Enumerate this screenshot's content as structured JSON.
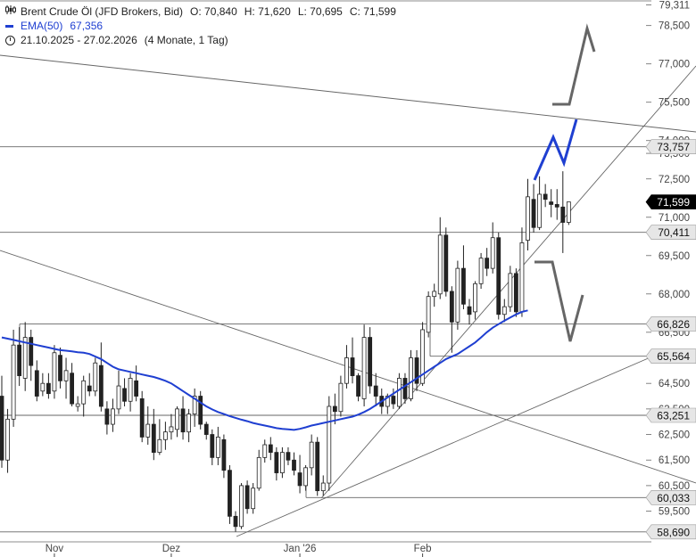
{
  "legend": {
    "title": "Brent Crude Öl (JFD Brokers, Bid)",
    "open": "O: 70,840",
    "high": "H: 71,620",
    "low": "L: 70,695",
    "close": "C: 71,599",
    "ema_label": "EMA(50)",
    "ema_value": "67,356",
    "date_range": "21.10.2025 - 27.02.2026",
    "period": "(4 Monate, 1 Tag)"
  },
  "chart_data": {
    "type": "candlestick",
    "y_axis_ticks": [
      "79,311",
      "78,500",
      "77,000",
      "75,500",
      "74,000",
      "73,500",
      "72,500",
      "71,000",
      "69,500",
      "68,000",
      "66,500",
      "64,500",
      "63,500",
      "62,500",
      "61,500",
      "60,500",
      "59,500"
    ],
    "x_axis_ticks": [
      "Nov",
      "Dez",
      "Jan '26",
      "Feb"
    ],
    "ylim": [
      58.3,
      79.5
    ],
    "price_tags": [
      {
        "value": "73,757",
        "style": "level"
      },
      {
        "value": "71,599",
        "style": "last"
      },
      {
        "value": "70,411",
        "style": "level"
      },
      {
        "value": "66,826",
        "style": "level"
      },
      {
        "value": "65,564",
        "style": "level"
      },
      {
        "value": "63,251",
        "style": "level"
      },
      {
        "value": "60,033",
        "style": "level"
      },
      {
        "value": "58,690",
        "style": "level"
      }
    ],
    "horizontal_levels": [
      73.757,
      70.411,
      66.826,
      65.564,
      63.251,
      60.033,
      58.69
    ],
    "last_price": 71.599,
    "colors": {
      "up": "#ffffff",
      "down": "#222222",
      "wick": "#222222",
      "ema": "#1f3fd1",
      "level": "#666666",
      "scenario_up": "#1f3fd1",
      "scenario_alt": "#666666",
      "tag_bg": "#e6e6e6",
      "last_tag_bg": "#000000"
    },
    "candles": [
      [
        64.0,
        64.8,
        61.2,
        61.5
      ],
      [
        61.5,
        63.5,
        61.0,
        63.1
      ],
      [
        63.1,
        66.6,
        62.8,
        66.0
      ],
      [
        66.0,
        66.7,
        64.4,
        64.8
      ],
      [
        64.7,
        66.9,
        64.2,
        66.3
      ],
      [
        66.3,
        66.6,
        64.6,
        65.2
      ],
      [
        65.0,
        65.4,
        63.8,
        64.0
      ],
      [
        64.2,
        64.9,
        64.0,
        64.5
      ],
      [
        64.5,
        64.9,
        63.9,
        64.1
      ],
      [
        64.2,
        66.0,
        63.9,
        65.7
      ],
      [
        65.6,
        65.9,
        64.3,
        64.6
      ],
      [
        64.6,
        65.5,
        63.9,
        65.0
      ],
      [
        64.9,
        65.3,
        63.6,
        63.7
      ],
      [
        63.6,
        64.0,
        63.4,
        63.7
      ],
      [
        63.7,
        64.8,
        63.2,
        64.6
      ],
      [
        64.4,
        64.9,
        64.0,
        64.2
      ],
      [
        64.2,
        65.5,
        64.0,
        65.3
      ],
      [
        65.2,
        66.1,
        63.4,
        63.6
      ],
      [
        63.5,
        63.8,
        62.5,
        62.9
      ],
      [
        62.9,
        63.9,
        62.6,
        63.5
      ],
      [
        63.5,
        65.0,
        63.3,
        64.4
      ],
      [
        64.3,
        64.7,
        63.6,
        63.8
      ],
      [
        63.8,
        64.9,
        63.4,
        64.7
      ],
      [
        64.6,
        65.2,
        63.8,
        64.0
      ],
      [
        63.9,
        64.2,
        62.2,
        62.4
      ],
      [
        62.4,
        63.6,
        62.1,
        62.9
      ],
      [
        62.9,
        63.5,
        61.5,
        61.8
      ],
      [
        61.8,
        63.1,
        61.7,
        62.3
      ],
      [
        62.3,
        63.0,
        61.9,
        62.6
      ],
      [
        62.6,
        63.3,
        62.3,
        62.8
      ],
      [
        62.7,
        63.6,
        62.4,
        63.5
      ],
      [
        63.5,
        64.0,
        62.3,
        62.6
      ],
      [
        62.6,
        63.5,
        62.2,
        63.3
      ],
      [
        63.3,
        64.3,
        62.8,
        64.0
      ],
      [
        64.0,
        64.2,
        62.7,
        62.9
      ],
      [
        62.9,
        63.0,
        62.3,
        62.5
      ],
      [
        62.5,
        62.7,
        61.3,
        61.6
      ],
      [
        61.6,
        62.8,
        61.3,
        62.4
      ],
      [
        62.3,
        62.5,
        60.8,
        61.1
      ],
      [
        61.1,
        61.3,
        59.0,
        59.3
      ],
      [
        59.3,
        59.5,
        58.7,
        58.9
      ],
      [
        58.9,
        60.6,
        58.8,
        60.5
      ],
      [
        60.5,
        60.7,
        59.4,
        59.6
      ],
      [
        59.6,
        60.6,
        59.4,
        60.4
      ],
      [
        60.4,
        61.9,
        60.3,
        61.6
      ],
      [
        61.6,
        62.3,
        61.4,
        62.1
      ],
      [
        62.1,
        62.4,
        61.5,
        61.8
      ],
      [
        61.8,
        62.0,
        60.7,
        61.0
      ],
      [
        61.0,
        62.0,
        60.8,
        61.8
      ],
      [
        61.8,
        62.0,
        61.3,
        61.5
      ],
      [
        61.5,
        61.8,
        60.9,
        61.1
      ],
      [
        61.0,
        61.7,
        60.2,
        60.5
      ],
      [
        60.5,
        61.3,
        60.3,
        61.2
      ],
      [
        61.2,
        62.5,
        60.9,
        62.2
      ],
      [
        62.2,
        62.4,
        60.1,
        60.3
      ],
      [
        60.3,
        60.9,
        60.1,
        60.6
      ],
      [
        60.6,
        64.0,
        60.3,
        63.6
      ],
      [
        63.6,
        64.1,
        62.9,
        63.4
      ],
      [
        63.4,
        64.8,
        63.2,
        64.5
      ],
      [
        64.5,
        66.0,
        64.3,
        65.5
      ],
      [
        65.5,
        66.3,
        64.5,
        64.8
      ],
      [
        64.8,
        64.9,
        63.8,
        64.0
      ],
      [
        63.9,
        66.8,
        63.6,
        66.3
      ],
      [
        66.3,
        66.7,
        64.1,
        64.4
      ],
      [
        64.4,
        64.9,
        63.6,
        64.0
      ],
      [
        64.0,
        64.3,
        63.3,
        63.6
      ],
      [
        63.6,
        64.1,
        63.3,
        64.0
      ],
      [
        64.0,
        64.3,
        63.5,
        63.7
      ],
      [
        63.6,
        64.9,
        63.5,
        64.7
      ],
      [
        64.7,
        64.9,
        63.7,
        63.9
      ],
      [
        63.9,
        65.8,
        63.8,
        65.5
      ],
      [
        65.5,
        65.8,
        64.2,
        64.5
      ],
      [
        64.5,
        66.9,
        64.4,
        66.6
      ],
      [
        66.5,
        68.1,
        66.3,
        67.9
      ],
      [
        67.9,
        68.4,
        67.5,
        68.1
      ],
      [
        68.0,
        71.0,
        67.8,
        70.3
      ],
      [
        70.3,
        70.6,
        67.9,
        68.1
      ],
      [
        68.1,
        68.3,
        65.7,
        66.9
      ],
      [
        66.9,
        69.3,
        66.6,
        69.0
      ],
      [
        69.0,
        69.9,
        67.4,
        67.6
      ],
      [
        67.5,
        67.8,
        66.8,
        67.2
      ],
      [
        67.3,
        68.5,
        67.0,
        68.4
      ],
      [
        68.4,
        69.6,
        68.2,
        69.4
      ],
      [
        69.4,
        69.8,
        68.7,
        69.0
      ],
      [
        69.0,
        70.8,
        68.8,
        70.2
      ],
      [
        70.2,
        70.4,
        67.0,
        67.2
      ],
      [
        67.2,
        67.8,
        66.9,
        67.5
      ],
      [
        67.5,
        69.1,
        67.3,
        68.8
      ],
      [
        68.8,
        69.0,
        67.1,
        67.3
      ],
      [
        67.3,
        70.6,
        67.1,
        70.0
      ],
      [
        70.1,
        72.5,
        69.7,
        71.8
      ],
      [
        71.7,
        72.3,
        70.4,
        70.6
      ],
      [
        70.6,
        72.6,
        70.5,
        71.9
      ],
      [
        71.9,
        72.3,
        71.4,
        71.7
      ],
      [
        71.6,
        72.1,
        71.0,
        71.5
      ],
      [
        71.5,
        72.1,
        70.9,
        71.4
      ],
      [
        71.4,
        72.8,
        69.6,
        70.8
      ],
      [
        70.8,
        71.6,
        70.7,
        71.6
      ]
    ],
    "ema50": [
      66.3,
      66.25,
      66.2,
      66.15,
      66.1,
      66.05,
      66.0,
      65.95,
      65.9,
      65.85,
      65.8,
      65.78,
      65.75,
      65.72,
      65.7,
      65.65,
      65.55,
      65.45,
      65.3,
      65.15,
      65.05,
      65.0,
      64.95,
      64.9,
      64.85,
      64.8,
      64.75,
      64.68,
      64.6,
      64.5,
      64.35,
      64.2,
      64.05,
      63.9,
      63.75,
      63.6,
      63.48,
      63.38,
      63.3,
      63.22,
      63.15,
      63.08,
      63.02,
      62.95,
      62.9,
      62.85,
      62.8,
      62.75,
      62.72,
      62.7,
      62.68,
      62.72,
      62.78,
      62.85,
      62.9,
      62.95,
      63.0,
      63.05,
      63.1,
      63.15,
      63.2,
      63.28,
      63.38,
      63.5,
      63.65,
      63.8,
      63.95,
      64.1,
      64.25,
      64.4,
      64.55,
      64.7,
      64.85,
      65.0,
      65.15,
      65.3,
      65.45,
      65.55,
      65.65,
      65.8,
      65.95,
      66.1,
      66.3,
      66.5,
      66.68,
      66.82,
      66.95,
      67.08,
      67.2,
      67.3,
      67.356
    ]
  }
}
